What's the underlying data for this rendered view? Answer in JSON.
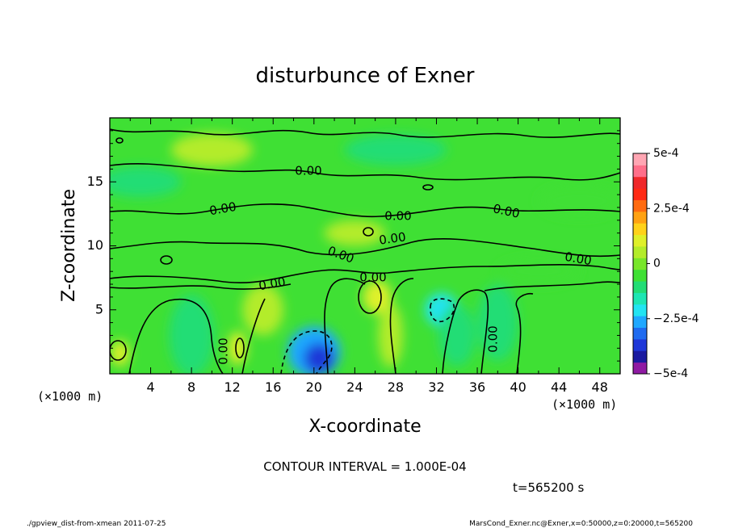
{
  "chart_data": {
    "type": "heatmap",
    "title": "disturbunce of Exner",
    "xlabel": "X-coordinate",
    "ylabel": "Z-coordinate",
    "x_unit": "(×1000 m)",
    "y_unit": "(×1000 m)",
    "x_ticks": [
      4,
      8,
      12,
      16,
      20,
      24,
      28,
      32,
      36,
      40,
      44,
      48
    ],
    "y_ticks": [
      5,
      10,
      15
    ],
    "xlim": [
      0,
      50
    ],
    "ylim": [
      0,
      20
    ],
    "colorbar": {
      "ticks": [
        "5e-4",
        "2.5e-4",
        "0",
        "−2.5e-4",
        "−5e-4"
      ],
      "tick_values": [
        0.0005,
        0.00025,
        0,
        -0.00025,
        -0.0005
      ],
      "range": [
        -0.0005,
        0.0005
      ],
      "colors": [
        "#8f1aa3",
        "#1a1aa0",
        "#1e37d8",
        "#1f6bf0",
        "#1fa8ff",
        "#22e4f2",
        "#1de6b3",
        "#22dd75",
        "#3fe034",
        "#78e62a",
        "#b3ec2a",
        "#dff02a",
        "#ffd21a",
        "#ffa212",
        "#ff6b10",
        "#ff2a14",
        "#f0282a",
        "#ff6f8a",
        "#ffa6b3"
      ]
    },
    "contour_interval_text": "CONTOUR INTERVAL = 1.000E-04",
    "contour_label": "0.00",
    "blobs": [
      {
        "x": 20,
        "z": 1.7,
        "rx": 2.6,
        "rz": 2.0,
        "value": -0.00028
      },
      {
        "x": 20.5,
        "z": 1.2,
        "rx": 1.5,
        "rz": 1.2,
        "value": -0.00036
      },
      {
        "x": 32.5,
        "z": 5.0,
        "rx": 1.6,
        "rz": 1.3,
        "value": -0.00022
      },
      {
        "x": 8,
        "z": 3.0,
        "rx": 2.2,
        "rz": 3.2,
        "value": -0.00013
      },
      {
        "x": 38,
        "z": 4.0,
        "rx": 2.0,
        "rz": 3.0,
        "value": -0.0001
      },
      {
        "x": 34,
        "z": 3.0,
        "rx": 1.8,
        "rz": 2.4,
        "value": -0.00012
      },
      {
        "x": 3,
        "z": 15.0,
        "rx": 4.0,
        "rz": 1.2,
        "value": -8e-05
      },
      {
        "x": 28,
        "z": 17.5,
        "rx": 5.0,
        "rz": 1.2,
        "value": -8e-05
      },
      {
        "x": 42,
        "z": 8.0,
        "rx": 4.0,
        "rz": 1.0,
        "value": -7e-05
      },
      {
        "x": 46,
        "z": 13.5,
        "rx": 4.0,
        "rz": 1.2,
        "value": -7e-05
      },
      {
        "x": 26.2,
        "z": 6.0,
        "rx": 1.4,
        "rz": 1.3,
        "value": 0.00012
      },
      {
        "x": 1,
        "z": 1.6,
        "rx": 0.9,
        "rz": 1.0,
        "value": 0.00011
      },
      {
        "x": 12.5,
        "z": 2.0,
        "rx": 0.9,
        "rz": 1.3,
        "value": 0.0001
      },
      {
        "x": 15,
        "z": 5.0,
        "rx": 2.0,
        "rz": 2.0,
        "value": 6e-05
      },
      {
        "x": 27.5,
        "z": 3.0,
        "rx": 1.2,
        "rz": 2.5,
        "value": 6e-05
      },
      {
        "x": 24,
        "z": 11.0,
        "rx": 3.0,
        "rz": 1.0,
        "value": 5e-05
      },
      {
        "x": 10,
        "z": 17.5,
        "rx": 4.0,
        "rz": 1.3,
        "value": 5e-05
      }
    ]
  },
  "footer": {
    "time_label": "t=565200 s",
    "script_label": "./gpview_dist-from-xmean  2011-07-25",
    "source_label": "MarsCond_Exner.nc@Exner,x=0:50000,z=0:20000,t=565200"
  }
}
